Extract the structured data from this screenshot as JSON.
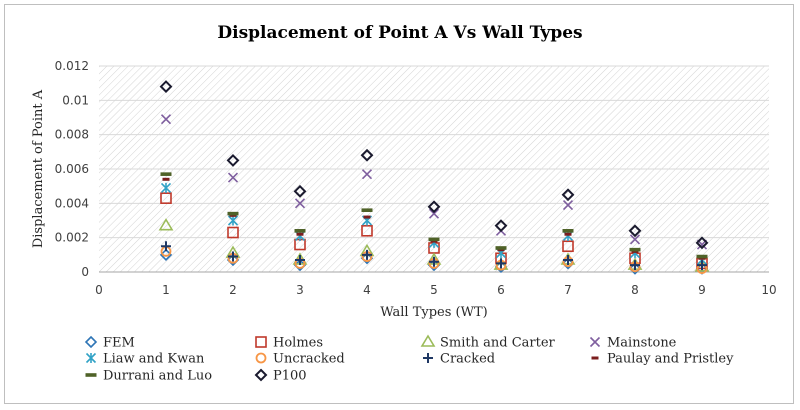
{
  "chart_data": {
    "type": "scatter",
    "title": "Displacement of Point A Vs Wall Types",
    "xlabel": "Wall Types (WT)",
    "ylabel": "Displacement of Point A",
    "xlim": [
      0,
      10
    ],
    "ylim": [
      0,
      0.012
    ],
    "xticks": [
      "0",
      "1",
      "2",
      "3",
      "4",
      "5",
      "6",
      "7",
      "8",
      "9",
      "10"
    ],
    "yticks": [
      "0",
      "0.002",
      "0.004",
      "0.006",
      "0.008",
      "0.01",
      "0.012"
    ],
    "grid": "horizontal",
    "plot_fill": "diagonal-hatch",
    "legend_position": "bottom",
    "x": [
      1,
      2,
      3,
      4,
      5,
      6,
      7,
      8,
      9
    ],
    "series": [
      {
        "name": "FEM",
        "marker": "diamond",
        "color": "#2e75b6",
        "values": [
          0.001,
          0.0007,
          0.0004,
          0.0008,
          0.0004,
          0.0003,
          0.0005,
          0.0002,
          0.0002
        ]
      },
      {
        "name": "Holmes",
        "marker": "square",
        "color": "#c0392b",
        "values": [
          0.0043,
          0.0023,
          0.0016,
          0.0024,
          0.0014,
          0.0008,
          0.0015,
          0.0008,
          0.0005
        ]
      },
      {
        "name": "Smith and Carter",
        "marker": "triangle",
        "color": "#9bbb59",
        "values": [
          0.0027,
          0.0011,
          0.0007,
          0.0012,
          0.0007,
          0.0004,
          0.0007,
          0.0004,
          0.0003
        ]
      },
      {
        "name": "Mainstone",
        "marker": "x",
        "color": "#7f5f9f",
        "values": [
          0.0089,
          0.0055,
          0.004,
          0.0057,
          0.0034,
          0.0024,
          0.0039,
          0.0019,
          0.0016
        ]
      },
      {
        "name": "Liaw and Kwan",
        "marker": "star",
        "color": "#31a2c6",
        "values": [
          0.0049,
          0.003,
          0.0021,
          0.003,
          0.0017,
          0.0011,
          0.0021,
          0.0011,
          0.0007
        ]
      },
      {
        "name": "Uncracked",
        "marker": "circle",
        "color": "#f79646",
        "values": [
          0.0012,
          0.0008,
          0.0005,
          0.0009,
          0.0005,
          0.0004,
          0.0006,
          0.0003,
          0.0002
        ]
      },
      {
        "name": "Cracked",
        "marker": "plus",
        "color": "#1f3864",
        "values": [
          0.0015,
          0.0009,
          0.0007,
          0.001,
          0.0006,
          0.0005,
          0.0007,
          0.0004,
          0.0004
        ]
      },
      {
        "name": "Paulay and Pristley",
        "marker": "dash",
        "color": "#7b1e1e",
        "values": [
          0.0054,
          0.0033,
          0.0022,
          0.0032,
          0.0018,
          0.0013,
          0.0022,
          0.0012,
          0.0008
        ]
      },
      {
        "name": "Durrani and Luo",
        "marker": "dash-wide",
        "color": "#4f6228",
        "values": [
          0.0057,
          0.0034,
          0.0024,
          0.0036,
          0.0019,
          0.0014,
          0.0024,
          0.0013,
          0.0009
        ]
      },
      {
        "name": "P100",
        "marker": "diamond-open",
        "color": "#1a1a2e",
        "values": [
          0.0108,
          0.0065,
          0.0047,
          0.0068,
          0.0038,
          0.0027,
          0.0045,
          0.0024,
          0.0017
        ]
      }
    ]
  }
}
